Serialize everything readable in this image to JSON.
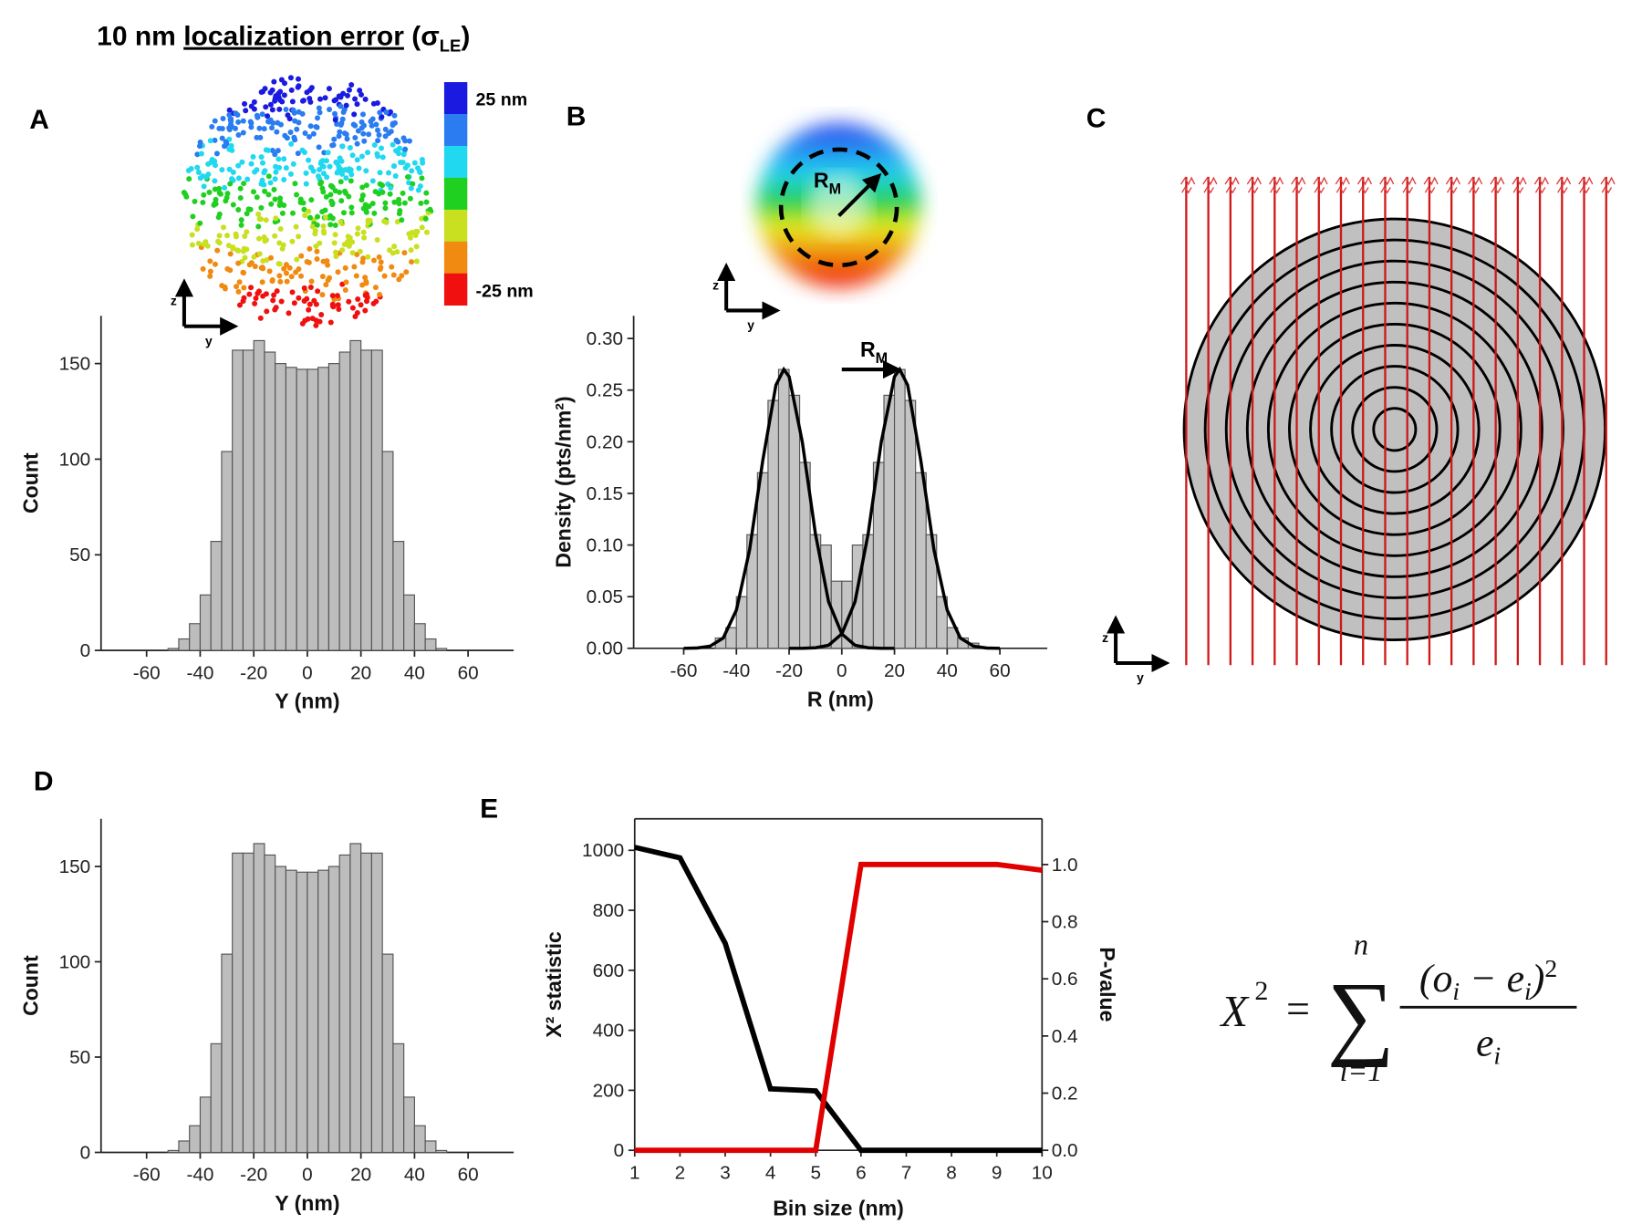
{
  "title_parts": [
    "10 nm ",
    "localization error",
    " (σ",
    "LE",
    ")"
  ],
  "panel_labels": [
    "A",
    "B",
    "C",
    "D",
    "E"
  ],
  "colorbar_labels": [
    "25 nm",
    "-25 nm"
  ],
  "axes_glyph": {
    "z": "z",
    "y": "y"
  },
  "formula": {
    "lhs": "X",
    "lhs_sup": "2",
    "eq": "=",
    "sum": "∑",
    "upper": "n",
    "lower": "i=1",
    "numerator": "(o",
    "num_sub1": "i",
    "num_minus": " − e",
    "num_sub2": "i",
    "num_close": ")",
    "num_sup": "2",
    "denominator": "e",
    "den_sub": "i"
  },
  "chart_data": [
    {
      "type": "histogram",
      "xlabel": "Y (nm)",
      "ylabel": "Count",
      "color": "#bdbdbd",
      "bins": [
        -52,
        -48,
        -44,
        -40,
        -36,
        -32,
        -28,
        -24,
        -20,
        -16,
        -12,
        -8,
        -4,
        0,
        4,
        8,
        12,
        16,
        20,
        24,
        28,
        32,
        36,
        40,
        44,
        48,
        52
      ],
      "values": [
        1,
        6,
        14,
        29,
        57,
        104,
        157,
        157,
        162,
        156,
        150,
        148,
        147,
        147,
        148,
        150,
        156,
        162,
        157,
        157,
        104,
        57,
        29,
        14,
        6,
        1
      ],
      "xlim": [
        -77,
        77
      ],
      "ylim": [
        0,
        175
      ],
      "xticks": [
        -60,
        -40,
        -20,
        0,
        20,
        40,
        60
      ],
      "yticks": [
        0,
        50,
        100,
        150
      ]
    },
    {
      "type": "histogram",
      "xlabel": "R (nm)",
      "ylabel": "Density (pts/nm²)",
      "color": "#c4c4c4",
      "bins": [
        -48,
        -44,
        -40,
        -36,
        -32,
        -28,
        -24,
        -20,
        -16,
        -12,
        -8,
        -4,
        0,
        4,
        8,
        12,
        16,
        20,
        24,
        28,
        32,
        36,
        40,
        44,
        48,
        52
      ],
      "values": [
        0.01,
        0.02,
        0.05,
        0.11,
        0.17,
        0.24,
        0.27,
        0.245,
        0.18,
        0.11,
        0.1,
        0.065,
        0.065,
        0.1,
        0.11,
        0.18,
        0.245,
        0.27,
        0.24,
        0.17,
        0.11,
        0.05,
        0.02,
        0.01,
        0.005
      ],
      "series": [
        {
          "color": "#000000",
          "x": [
            -60,
            -55,
            -50,
            -45,
            -40,
            -35,
            -30,
            -25,
            -22,
            -20,
            -15,
            -10,
            -5,
            0,
            5,
            10,
            15,
            20
          ],
          "values": [
            0,
            0.0003,
            0.002,
            0.01,
            0.037,
            0.095,
            0.182,
            0.255,
            0.27,
            0.263,
            0.2,
            0.111,
            0.045,
            0.014,
            0.003,
            0.0005,
            0,
            0
          ]
        },
        {
          "color": "#000000",
          "x": [
            -20,
            -15,
            -10,
            -5,
            0,
            5,
            10,
            15,
            20,
            22,
            25,
            30,
            35,
            40,
            45,
            50,
            55,
            60
          ],
          "values": [
            0,
            0,
            0.0005,
            0.003,
            0.014,
            0.045,
            0.111,
            0.2,
            0.263,
            0.27,
            0.255,
            0.182,
            0.095,
            0.037,
            0.01,
            0.002,
            0.0003,
            0
          ]
        }
      ],
      "annotation": [
        "R",
        "M"
      ],
      "xlim": [
        -79,
        78
      ],
      "ylim": [
        0,
        0.322
      ],
      "xticks": [
        -60,
        -40,
        -20,
        0,
        20,
        40,
        60
      ],
      "yticks": [
        {
          "value": 0,
          "label": "0.00"
        },
        {
          "value": 0.05,
          "label": "0.05"
        },
        {
          "value": 0.1,
          "label": "0.10"
        },
        {
          "value": 0.15,
          "label": "0.15"
        },
        {
          "value": 0.2,
          "label": "0.20"
        },
        {
          "value": 0.25,
          "label": "0.25"
        },
        {
          "value": 0.3,
          "label": "0.30"
        }
      ]
    },
    {
      "type": "histogram",
      "xlabel": "Y (nm)",
      "ylabel": "Count",
      "color": "#bdbdbd",
      "bins": [
        -52,
        -48,
        -44,
        -40,
        -36,
        -32,
        -28,
        -24,
        -20,
        -16,
        -12,
        -8,
        -4,
        0,
        4,
        8,
        12,
        16,
        20,
        24,
        28,
        32,
        36,
        40,
        44,
        48,
        52
      ],
      "values": [
        1,
        6,
        14,
        29,
        57,
        104,
        157,
        157,
        162,
        156,
        150,
        148,
        147,
        147,
        148,
        150,
        156,
        162,
        157,
        157,
        104,
        57,
        29,
        14,
        6,
        1
      ],
      "xlim": [
        -77,
        77
      ],
      "ylim": [
        0,
        175
      ],
      "xticks": [
        -60,
        -40,
        -20,
        0,
        20,
        40,
        60
      ],
      "yticks": [
        0,
        50,
        100,
        150
      ]
    },
    {
      "type": "line",
      "xlabel": "Bin size (nm)",
      "ylabel": "X² statistic",
      "y2label": "P-value",
      "x": [
        1,
        2,
        3,
        4,
        5,
        6,
        7,
        8,
        9,
        10
      ],
      "series": [
        {
          "color": "#000000",
          "values": [
            1010,
            975,
            690,
            205,
            198,
            0,
            0,
            0,
            0,
            0
          ]
        },
        {
          "color": "#e00000",
          "axis": "y2",
          "values": [
            0,
            0,
            0,
            0,
            0,
            1.0,
            1.0,
            1.0,
            1.0,
            0.98
          ]
        }
      ],
      "xlim": [
        1,
        10
      ],
      "ylim": [
        0,
        1105
      ],
      "y2lim": [
        0,
        1.16
      ],
      "xticks": [
        1,
        2,
        3,
        4,
        5,
        6,
        7,
        8,
        9,
        10
      ],
      "yticks": [
        0,
        200,
        400,
        600,
        800,
        1000
      ],
      "y2ticks": [
        {
          "value": 0,
          "label": "0.0"
        },
        {
          "value": 0.2,
          "label": "0.2"
        },
        {
          "value": 0.4,
          "label": "0.4"
        },
        {
          "value": 0.6,
          "label": "0.6"
        },
        {
          "value": 0.8,
          "label": "0.8"
        },
        {
          "value": 1.0,
          "label": "1.0"
        }
      ]
    }
  ]
}
